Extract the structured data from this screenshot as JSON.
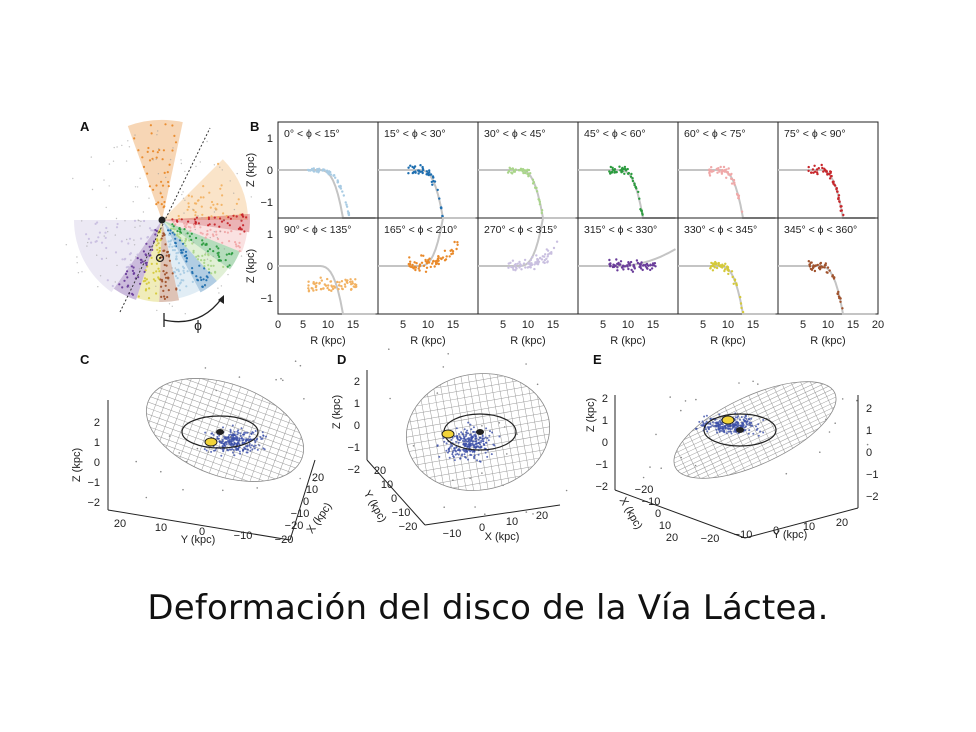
{
  "caption": "Deformación del disco de la Vía Láctea.",
  "panels": {
    "a": {
      "label": "A",
      "phi_symbol": "ϕ"
    },
    "b": {
      "label": "B"
    },
    "c": {
      "label": "C"
    },
    "d": {
      "label": "D"
    },
    "e": {
      "label": "E"
    }
  },
  "chart_data": [
    {
      "type": "scatter",
      "panel": "A",
      "description_free": true,
      "wedges_deg": [
        [
          0,
          15
        ],
        [
          15,
          30
        ],
        [
          30,
          45
        ],
        [
          45,
          60
        ],
        [
          60,
          75
        ],
        [
          75,
          90
        ],
        [
          90,
          135
        ],
        [
          165,
          210
        ],
        [
          270,
          315
        ],
        [
          315,
          330
        ],
        [
          330,
          345
        ],
        [
          345,
          360
        ]
      ]
    },
    {
      "type": "scatter",
      "panel": "B",
      "xlabel": "R (kpc)",
      "ylabel": "Z (kpc)",
      "y_ticks": [
        "1",
        "0",
        "−1"
      ],
      "ylim": [
        -1.5,
        1.5
      ],
      "x_ticks_row1_col1": [
        "0",
        "5",
        "10",
        "15"
      ],
      "x_ticks_other_cols": [
        "5",
        "10",
        "15"
      ],
      "x_ticks_last_col_extra": "20",
      "xlim": [
        0,
        20
      ],
      "grid": false,
      "subplots": [
        {
          "range": "0° < ϕ <  15°",
          "color": "#a8cbe3"
        },
        {
          "range": "15° < ϕ <  30°",
          "color": "#1f6fb0"
        },
        {
          "range": "30° < ϕ <  45°",
          "color": "#a9d58a"
        },
        {
          "range": "45° < ϕ <  60°",
          "color": "#2c9b3f"
        },
        {
          "range": "60° < ϕ <  75°",
          "color": "#f0a8a8"
        },
        {
          "range": "75° < ϕ <  90°",
          "color": "#c7262b"
        },
        {
          "range": "90° < ϕ < 135°",
          "color": "#f2b263"
        },
        {
          "range": "165° < ϕ < 210°",
          "color": "#e98a2b"
        },
        {
          "range": "270° < ϕ < 315°",
          "color": "#c9bfe0"
        },
        {
          "range": "315° < ϕ < 330°",
          "color": "#6a3d9a"
        },
        {
          "range": "330° < ϕ < 345°",
          "color": "#d4c93a"
        },
        {
          "range": "345° < ϕ < 360°",
          "color": "#a0522d"
        }
      ]
    },
    {
      "type": "scatter",
      "panel": "C",
      "zlabel": "Z (kpc)",
      "ylabel": "Y (kpc)",
      "xlabel": "X (kpc)",
      "z_ticks": [
        "2",
        "1",
        "0",
        "−1",
        "−2"
      ],
      "y_ticks": [
        "20",
        "10",
        "0",
        "−10",
        "−20"
      ],
      "x_ticks": [
        "20",
        "10",
        "0",
        "−10",
        "−20"
      ]
    },
    {
      "type": "scatter",
      "panel": "D",
      "zlabel": "Z (kpc)",
      "ylabel": "Y (kpc)",
      "xlabel": "X (kpc)",
      "z_ticks": [
        "2",
        "1",
        "0",
        "−1",
        "−2"
      ],
      "y_ticks": [
        "20",
        "10",
        "0",
        "−10",
        "−20"
      ],
      "x_ticks": [
        "−10",
        "0",
        "10",
        "20"
      ]
    },
    {
      "type": "scatter",
      "panel": "E",
      "zlabel": "Z (kpc)",
      "ylabel": "Y (kpc)",
      "xlabel": "X (kpc)",
      "z_ticks_left": [
        "2",
        "1",
        "0",
        "−1",
        "−2"
      ],
      "z_ticks_right": [
        "2",
        "1",
        "0",
        "−1",
        "−2"
      ],
      "y_ticks": [
        "−20",
        "−10",
        "0",
        "10",
        "20"
      ],
      "x_ticks": [
        "−20",
        "−10",
        "0",
        "10",
        "20"
      ]
    }
  ],
  "colors": {
    "star_blue": "#3b4fa8",
    "warp_grid": "#9a9a9a",
    "sun_marker": "#f2d43a"
  }
}
